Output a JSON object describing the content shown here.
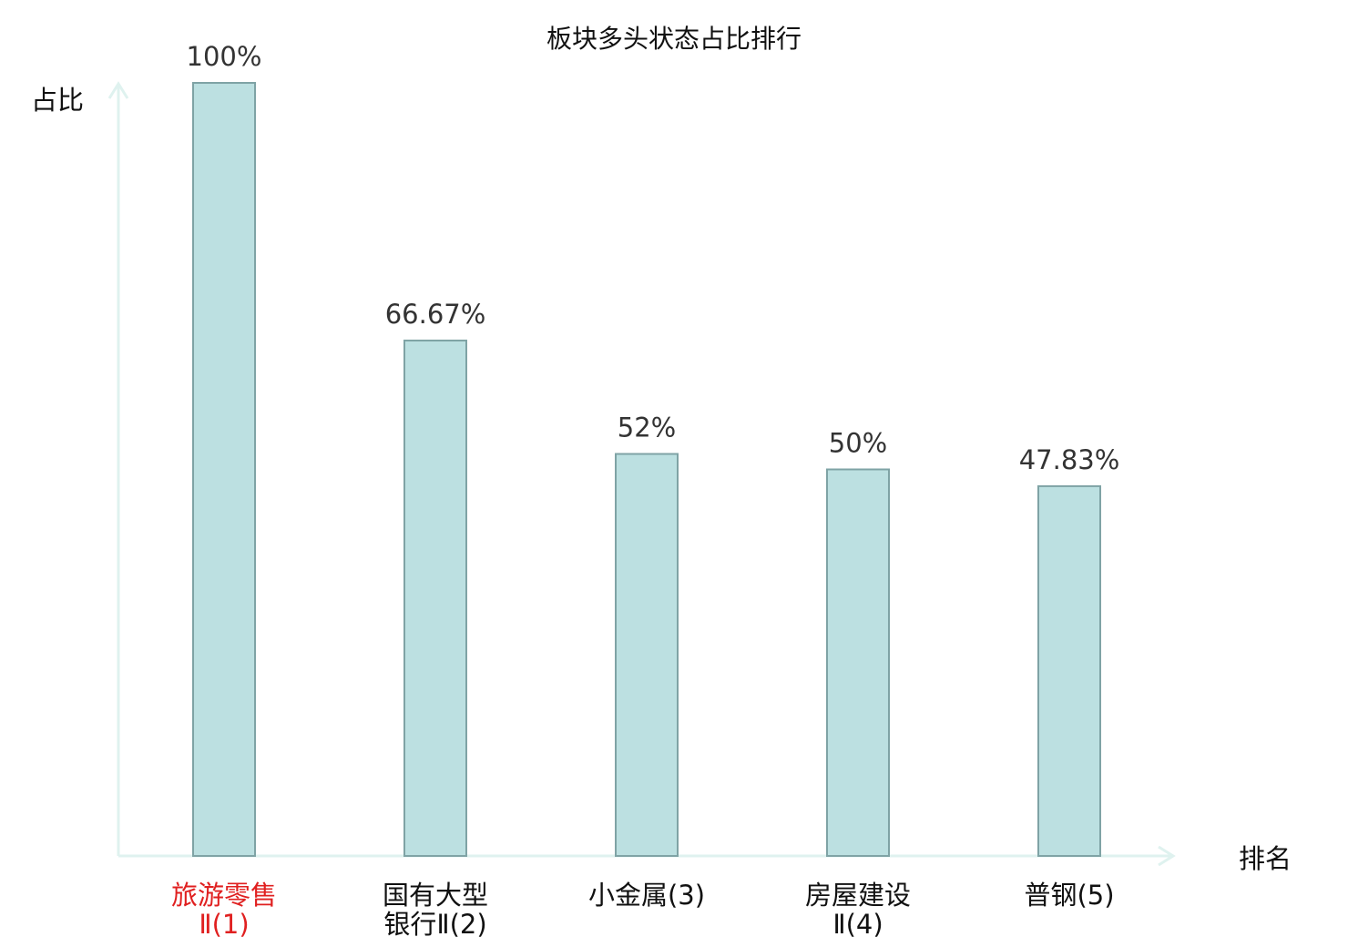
{
  "chart_data": {
    "type": "bar",
    "title": "板块多头状态占比排行",
    "ylabel": "占比",
    "xlabel": "排名",
    "categories": [
      {
        "lines": [
          "旅游零售",
          "Ⅱ(1)"
        ],
        "highlight": true
      },
      {
        "lines": [
          "国有大型",
          "银行Ⅱ(2)"
        ],
        "highlight": false
      },
      {
        "lines": [
          "小金属(3)"
        ],
        "highlight": false
      },
      {
        "lines": [
          "房屋建设",
          "Ⅱ(4)"
        ],
        "highlight": false
      },
      {
        "lines": [
          "普钢(5)"
        ],
        "highlight": false
      }
    ],
    "values": [
      100,
      66.67,
      52,
      50,
      47.83
    ],
    "value_labels": [
      "100%",
      "66.67%",
      "52%",
      "50%",
      "47.83%"
    ],
    "ylim": [
      0,
      100
    ],
    "grid": false,
    "legend": "none",
    "colors": {
      "bar_fill": "#bce0e1",
      "bar_stroke": "#7fa3a5",
      "axis": "#dff2ef",
      "highlight_label": "#e02020",
      "label": "#111111",
      "value_label": "#333333"
    }
  }
}
